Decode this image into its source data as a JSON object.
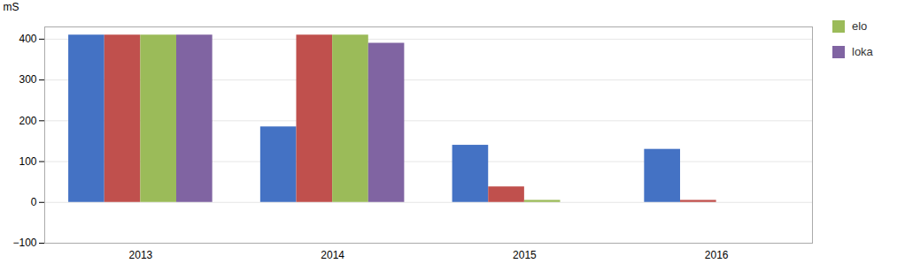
{
  "chart_data": {
    "type": "bar",
    "categories": [
      "2013",
      "2014",
      "2015",
      "2016"
    ],
    "series": [
      {
        "color": "#4472C4",
        "values": [
          410,
          185,
          140,
          130
        ]
      },
      {
        "color": "#C0504D",
        "values": [
          410,
          410,
          38,
          5
        ]
      },
      {
        "name": "elo",
        "color": "#9BBB59",
        "values": [
          410,
          410,
          5,
          0
        ]
      },
      {
        "name": "loka",
        "color": "#8064A2",
        "values": [
          410,
          390,
          0,
          0
        ]
      }
    ],
    "ylabel": "mS",
    "ylim": [
      -100,
      430
    ],
    "yticks": [
      -100,
      0,
      100,
      200,
      300,
      400
    ],
    "grid": true,
    "legend": "right"
  }
}
